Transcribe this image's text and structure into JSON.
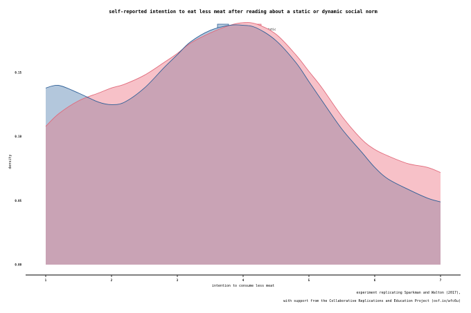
{
  "chart_data": {
    "type": "area",
    "title": "self-reported intention to eat less meat after reading about a static or dynamic social norm",
    "xlabel": "intention to consume less meat",
    "ylabel": "density",
    "xlim": [
      1,
      7
    ],
    "ylim": [
      0,
      0.19
    ],
    "x_ticks": [
      "1",
      "2",
      "3",
      "4",
      "5",
      "6",
      "7"
    ],
    "y_ticks": [
      "0.00",
      "0.05",
      "0.10",
      "0.15"
    ],
    "legend_position": "top-center",
    "grid": false,
    "series": [
      {
        "name": "dynamic",
        "fill": "#b3c7dc",
        "stroke": "#2e5f97",
        "x": [
          1.0,
          1.2,
          1.5,
          1.8,
          2.0,
          2.2,
          2.5,
          2.8,
          3.0,
          3.2,
          3.5,
          3.8,
          4.0,
          4.2,
          4.5,
          4.8,
          5.0,
          5.2,
          5.5,
          5.8,
          6.0,
          6.2,
          6.5,
          6.8,
          7.0
        ],
        "y": [
          0.138,
          0.14,
          0.134,
          0.127,
          0.125,
          0.127,
          0.138,
          0.154,
          0.164,
          0.174,
          0.183,
          0.187,
          0.187,
          0.185,
          0.175,
          0.158,
          0.143,
          0.128,
          0.106,
          0.088,
          0.076,
          0.067,
          0.059,
          0.052,
          0.049
        ]
      },
      {
        "name": "static",
        "fill": "#f7c1c8",
        "stroke": "#e06a7b",
        "x": [
          1.0,
          1.2,
          1.5,
          1.8,
          2.0,
          2.2,
          2.5,
          2.8,
          3.0,
          3.2,
          3.5,
          3.8,
          4.0,
          4.2,
          4.5,
          4.8,
          5.0,
          5.2,
          5.5,
          5.8,
          6.0,
          6.2,
          6.5,
          6.8,
          7.0
        ],
        "y": [
          0.108,
          0.118,
          0.128,
          0.134,
          0.138,
          0.141,
          0.148,
          0.158,
          0.165,
          0.173,
          0.181,
          0.187,
          0.189,
          0.188,
          0.18,
          0.164,
          0.151,
          0.138,
          0.116,
          0.098,
          0.09,
          0.085,
          0.079,
          0.076,
          0.072
        ]
      }
    ],
    "overlap_fill": "#c9a3b5"
  },
  "caption": [
    "experiment replicating Sparkman and Walton (2017),",
    "with support from the Collaborative Replications and Education Project (osf.io/wfc6u)"
  ]
}
